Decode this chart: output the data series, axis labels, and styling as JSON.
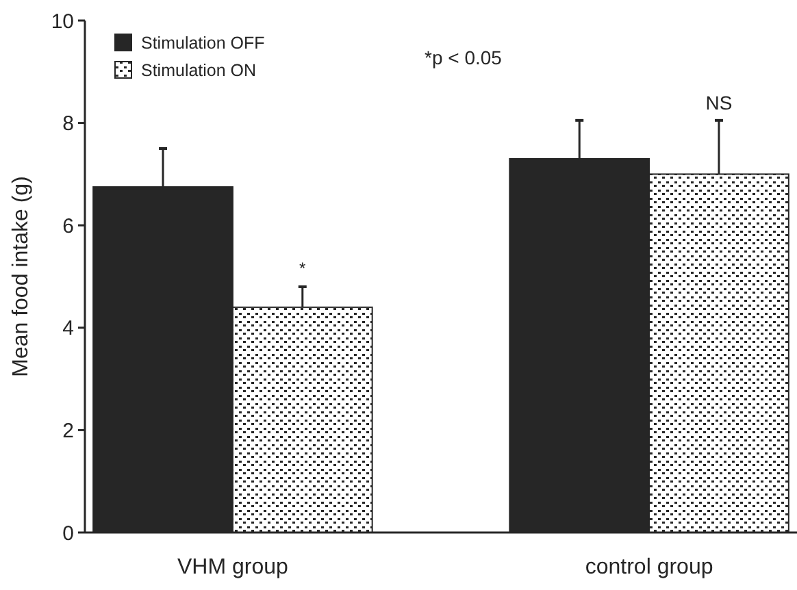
{
  "chart_data": {
    "type": "bar",
    "ylabel": "Mean food intake (g)",
    "categories": [
      "VHM group",
      "control group"
    ],
    "series": [
      {
        "name": "Stimulation OFF",
        "color": "#262626",
        "values": [
          6.75,
          7.3
        ],
        "errors": [
          [
            6.75,
            7.5
          ],
          [
            7.3,
            8.05
          ]
        ]
      },
      {
        "name": "Stimulation ON",
        "color": "#262626",
        "values": [
          4.4,
          7.0
        ],
        "errors": [
          [
            4.4,
            4.8
          ],
          [
            7.0,
            8.05
          ]
        ]
      }
    ],
    "ylim": [
      0,
      10
    ],
    "yticks": [
      0,
      2,
      4,
      6,
      8,
      10
    ],
    "grid": false,
    "legend": "top left",
    "annotations": [
      "*p < 0.05",
      "*",
      "NS"
    ]
  }
}
